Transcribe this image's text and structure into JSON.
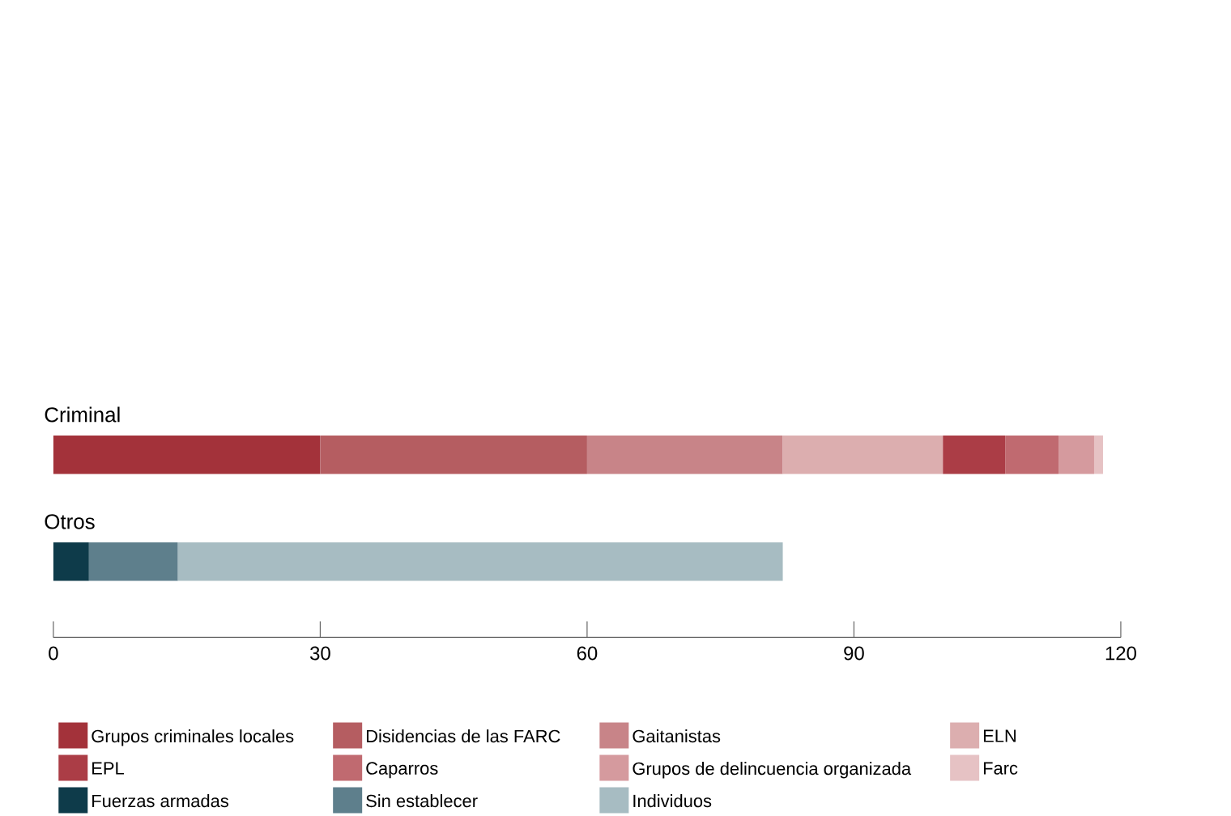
{
  "chart_data": {
    "type": "bar",
    "orientation": "horizontal",
    "stacked": true,
    "categories": [
      "Criminal",
      "Otros"
    ],
    "series": [
      {
        "name": "Grupos criminales locales",
        "color": "#a3323a",
        "values": [
          30,
          null
        ]
      },
      {
        "name": "Disidencias de las FARC",
        "color": "#b55d61",
        "values": [
          30,
          null
        ]
      },
      {
        "name": "Gaitanistas",
        "color": "#c88488",
        "values": [
          22,
          null
        ]
      },
      {
        "name": "ELN",
        "color": "#dcaeaf",
        "values": [
          18,
          null
        ]
      },
      {
        "name": "EPL",
        "color": "#ab3d46",
        "values": [
          7,
          null
        ]
      },
      {
        "name": "Caparros",
        "color": "#c06a70",
        "values": [
          6,
          null
        ]
      },
      {
        "name": "Grupos de delincuencia organizada",
        "color": "#d59a9e",
        "values": [
          4,
          null
        ]
      },
      {
        "name": "Farc",
        "color": "#e6c2c4",
        "values": [
          1,
          null
        ]
      },
      {
        "name": "Fuerzas armadas",
        "color": "#0e3b4a",
        "values": [
          null,
          4
        ]
      },
      {
        "name": "Sin establecer",
        "color": "#5e7f8c",
        "values": [
          null,
          10
        ]
      },
      {
        "name": "Individuos",
        "color": "#a7bcc2",
        "values": [
          null,
          68
        ]
      }
    ],
    "xlim": [
      0,
      120
    ],
    "xticks": [
      0,
      30,
      60,
      90,
      120
    ],
    "legend": "bottom",
    "grid": false
  }
}
